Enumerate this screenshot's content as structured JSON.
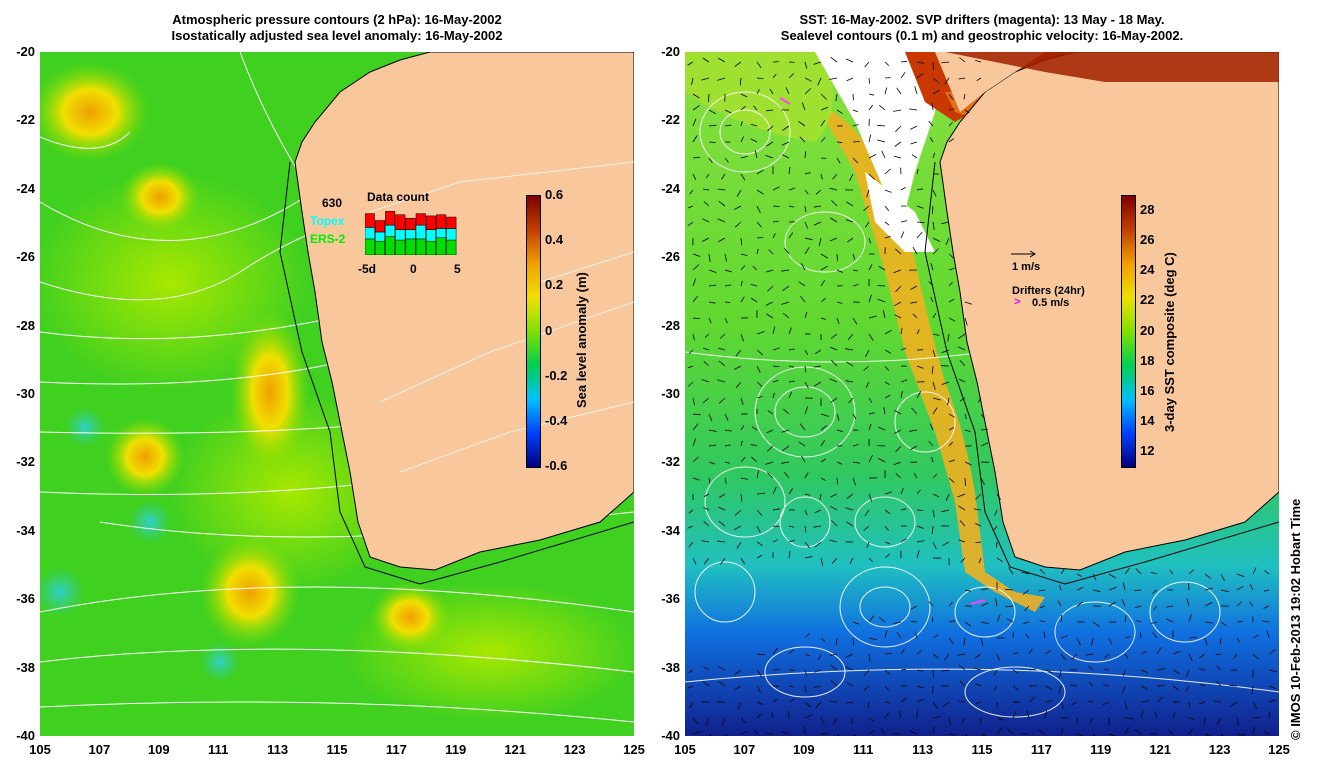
{
  "left_panel": {
    "title_line1": "Atmospheric pressure contours (2 hPa): 16-May-2002",
    "title_line2": "Isostatically adjusted sea level anomaly: 16-May-2002",
    "colorbar": {
      "label": "Sea level anomaly (m)",
      "ticks": [
        "0.6",
        "0.4",
        "0.2",
        "0",
        "-0.2",
        "-0.4",
        "-0.6"
      ],
      "range": [
        -0.6,
        0.6
      ],
      "colors": [
        "#00007f",
        "#0040ff",
        "#00c0ff",
        "#00d050",
        "#80e000",
        "#f0e000",
        "#f0a000",
        "#c04000",
        "#7f0000"
      ]
    },
    "data_count": {
      "title": "Data count",
      "count": "630",
      "legend_topex": "Topex",
      "legend_ers": "ERS-2",
      "axis_labels": [
        "-5d",
        "0",
        "5"
      ],
      "colors": {
        "red": "#ff0000",
        "cyan": "#00ffff",
        "green": "#00dd00"
      }
    }
  },
  "right_panel": {
    "title_line1": "SST: 16-May-2002. SVP drifters (magenta): 13 May - 18 May.",
    "title_line2": "Sealevel contours (0.1 m) and geostrophic velocity: 16-May-2002.",
    "colorbar": {
      "label": "3-day SST composite (deg C)",
      "ticks": [
        "28",
        "26",
        "24",
        "22",
        "20",
        "18",
        "16",
        "14",
        "12"
      ],
      "range": [
        11,
        29
      ],
      "colors": [
        "#00007f",
        "#0040ff",
        "#00c0ff",
        "#00d050",
        "#80e000",
        "#f0e000",
        "#f0a000",
        "#c04000",
        "#7f0000"
      ]
    },
    "velocity_scale": "1 m/s",
    "drifters_label": "Drifters (24hr)",
    "drifters_scale": "0.5 m/s"
  },
  "axes": {
    "y_ticks": [
      "-20",
      "-22",
      "-24",
      "-26",
      "-28",
      "-30",
      "-32",
      "-34",
      "-36",
      "-38",
      "-40"
    ],
    "x_ticks": [
      "105",
      "107",
      "109",
      "111",
      "113",
      "115",
      "117",
      "119",
      "121",
      "123",
      "125"
    ]
  },
  "land_color": "#f8c89c",
  "credit": "© IMOS 10-Feb-2013 19:02 Hobart Time"
}
